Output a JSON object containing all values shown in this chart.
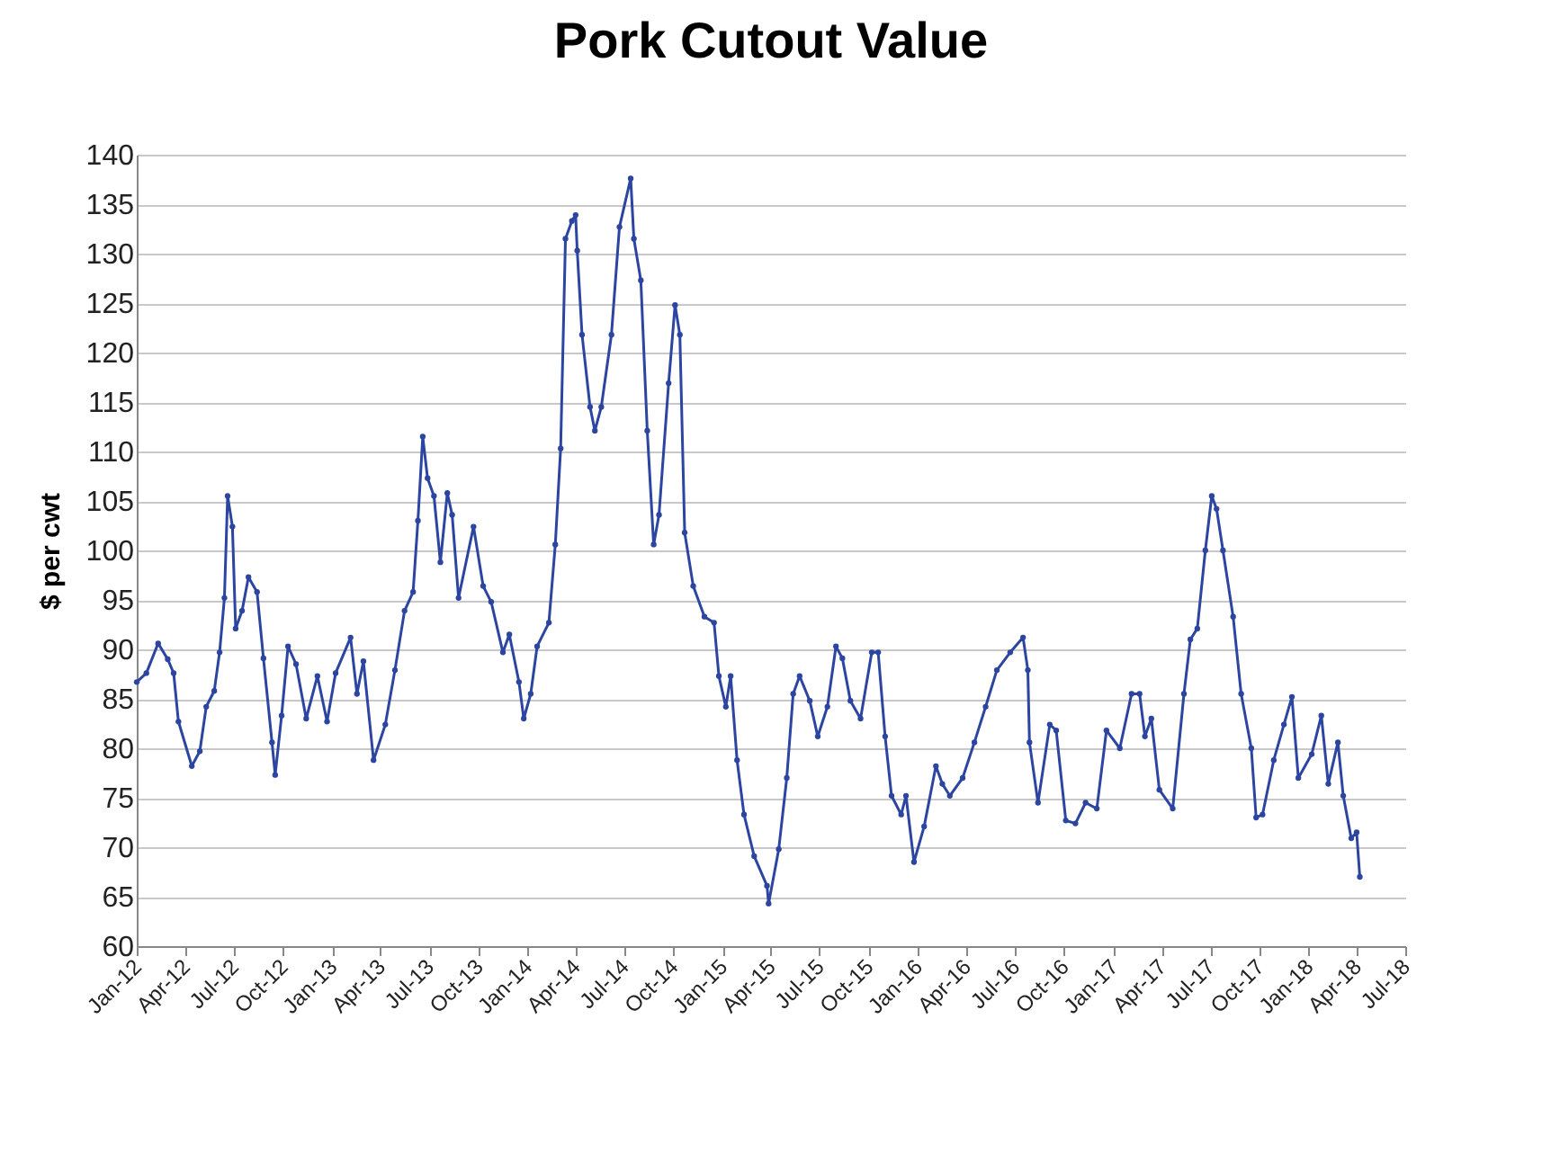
{
  "chart_data": {
    "type": "line",
    "title": "Pork Cutout Value",
    "ylabel": "$ per cwt",
    "x": [
      "2012-01-01",
      "2012-01-19",
      "2012-02-10",
      "2012-02-28",
      "2012-03-10",
      "2012-03-19",
      "2012-04-13",
      "2012-04-28",
      "2012-05-10",
      "2012-05-25",
      "2012-06-04",
      "2012-06-13",
      "2012-06-19",
      "2012-06-28",
      "2012-07-04",
      "2012-07-16",
      "2012-07-28",
      "2012-08-13",
      "2012-08-25",
      "2012-09-10",
      "2012-09-16",
      "2012-09-28",
      "2012-10-10",
      "2012-10-25",
      "2012-11-13",
      "2012-12-04",
      "2012-12-22",
      "2013-01-07",
      "2013-02-04",
      "2013-02-16",
      "2013-02-28",
      "2013-03-19",
      "2013-04-10",
      "2013-04-28",
      "2013-05-16",
      "2013-06-01",
      "2013-06-10",
      "2013-06-19",
      "2013-06-28",
      "2013-07-10",
      "2013-07-22",
      "2013-08-04",
      "2013-08-13",
      "2013-08-25",
      "2013-09-22",
      "2013-10-10",
      "2013-10-25",
      "2013-11-16",
      "2013-11-28",
      "2013-12-16",
      "2013-12-25",
      "2014-01-07",
      "2014-01-19",
      "2014-02-10",
      "2014-02-22",
      "2014-03-04",
      "2014-03-13",
      "2014-03-25",
      "2014-04-01",
      "2014-04-04",
      "2014-04-13",
      "2014-04-28",
      "2014-05-07",
      "2014-05-19",
      "2014-06-07",
      "2014-06-22",
      "2014-07-13",
      "2014-07-19",
      "2014-08-01",
      "2014-08-13",
      "2014-08-25",
      "2014-09-04",
      "2014-09-22",
      "2014-10-04",
      "2014-10-13",
      "2014-10-22",
      "2014-11-07",
      "2014-11-28",
      "2014-12-16",
      "2014-12-25",
      "2015-01-07",
      "2015-01-16",
      "2015-01-28",
      "2015-02-10",
      "2015-03-01",
      "2015-03-25",
      "2015-03-28",
      "2015-04-16",
      "2015-05-01",
      "2015-05-13",
      "2015-05-25",
      "2015-06-13",
      "2015-06-28",
      "2015-07-16",
      "2015-08-01",
      "2015-08-13",
      "2015-08-28",
      "2015-09-16",
      "2015-10-07",
      "2015-10-19",
      "2015-11-01",
      "2015-11-13",
      "2015-12-01",
      "2015-12-10",
      "2015-12-25",
      "2016-01-13",
      "2016-02-04",
      "2016-02-16",
      "2016-03-01",
      "2016-03-25",
      "2016-04-16",
      "2016-05-07",
      "2016-05-28",
      "2016-06-22",
      "2016-07-16",
      "2016-07-25",
      "2016-07-28",
      "2016-08-13",
      "2016-09-04",
      "2016-09-16",
      "2016-10-04",
      "2016-10-22",
      "2016-11-10",
      "2016-12-01",
      "2016-12-19",
      "2017-01-13",
      "2017-02-04",
      "2017-02-19",
      "2017-03-01",
      "2017-03-13",
      "2017-03-28",
      "2017-04-22",
      "2017-05-13",
      "2017-05-25",
      "2017-06-07",
      "2017-06-22",
      "2017-07-04",
      "2017-07-13",
      "2017-07-25",
      "2017-08-13",
      "2017-08-28",
      "2017-09-16",
      "2017-09-25",
      "2017-10-07",
      "2017-10-28",
      "2017-11-16",
      "2017-12-01",
      "2017-12-13",
      "2018-01-07",
      "2018-01-25",
      "2018-02-07",
      "2018-02-25",
      "2018-03-07",
      "2018-03-22",
      "2018-04-01",
      "2018-04-07"
    ],
    "series": [
      {
        "color": "#2b45a0",
        "values": [
          86.7,
          87.6,
          90.6,
          89,
          87.6,
          82.7,
          78.2,
          79.7,
          84.2,
          85.8,
          89.7,
          95.2,
          105.5,
          102.4,
          92.1,
          93.9,
          97.3,
          95.8,
          89.1,
          80.6,
          77.3,
          83.3,
          90.3,
          88.5,
          83,
          87.3,
          82.7,
          87.6,
          91.2,
          85.5,
          88.8,
          78.8,
          82.4,
          87.9,
          93.9,
          95.8,
          103,
          111.5,
          107.3,
          105.5,
          98.8,
          105.8,
          103.6,
          95.2,
          102.4,
          96.4,
          94.8,
          89.7,
          91.5,
          86.7,
          83,
          85.5,
          90.3,
          92.7,
          100.6,
          110.3,
          131.5,
          133.3,
          133.9,
          130.3,
          121.8,
          114.5,
          112.1,
          114.5,
          121.8,
          132.7,
          137.6,
          131.5,
          127.3,
          112.1,
          100.6,
          103.6,
          116.9,
          124.8,
          121.8,
          101.8,
          96.4,
          93.3,
          92.7,
          87.3,
          84.2,
          87.3,
          78.8,
          73.3,
          69.1,
          66.1,
          64.3,
          69.8,
          77,
          85.5,
          87.3,
          84.8,
          81.2,
          84.2,
          90.3,
          89.1,
          84.8,
          83,
          89.7,
          89.7,
          81.2,
          75.2,
          73.3,
          75.2,
          68.5,
          72.1,
          78.2,
          76.4,
          75.2,
          77,
          80.6,
          84.2,
          87.9,
          89.7,
          91.2,
          87.9,
          80.6,
          74.5,
          82.4,
          81.8,
          72.7,
          72.4,
          74.5,
          73.9,
          81.8,
          80,
          85.5,
          85.5,
          81.2,
          83,
          75.8,
          73.9,
          85.5,
          91,
          92.1,
          100,
          105.5,
          104.2,
          100,
          93.3,
          85.5,
          80,
          73,
          73.3,
          78.8,
          82.4,
          85.2,
          77,
          79.4,
          83.3,
          76.4,
          80.6,
          75.2,
          70.9,
          71.5,
          67
        ]
      }
    ],
    "xlim": [
      "2012-01-01",
      "2018-07-01"
    ],
    "xticks": [
      {
        "value": "2012-01-01",
        "label": "Jan-12"
      },
      {
        "value": "2012-04-01",
        "label": "Apr-12"
      },
      {
        "value": "2012-07-01",
        "label": "Jul-12"
      },
      {
        "value": "2012-10-01",
        "label": "Oct-12"
      },
      {
        "value": "2013-01-01",
        "label": "Jan-13"
      },
      {
        "value": "2013-04-01",
        "label": "Apr-13"
      },
      {
        "value": "2013-07-01",
        "label": "Jul-13"
      },
      {
        "value": "2013-10-01",
        "label": "Oct-13"
      },
      {
        "value": "2014-01-01",
        "label": "Jan-14"
      },
      {
        "value": "2014-04-01",
        "label": "Apr-14"
      },
      {
        "value": "2014-07-01",
        "label": "Jul-14"
      },
      {
        "value": "2014-10-01",
        "label": "Oct-14"
      },
      {
        "value": "2015-01-01",
        "label": "Jan-15"
      },
      {
        "value": "2015-04-01",
        "label": "Apr-15"
      },
      {
        "value": "2015-07-01",
        "label": "Jul-15"
      },
      {
        "value": "2015-10-01",
        "label": "Oct-15"
      },
      {
        "value": "2016-01-01",
        "label": "Jan-16"
      },
      {
        "value": "2016-04-01",
        "label": "Apr-16"
      },
      {
        "value": "2016-07-01",
        "label": "Jul-16"
      },
      {
        "value": "2016-10-01",
        "label": "Oct-16"
      },
      {
        "value": "2017-01-01",
        "label": "Jan-17"
      },
      {
        "value": "2017-04-01",
        "label": "Apr-17"
      },
      {
        "value": "2017-07-01",
        "label": "Jul-17"
      },
      {
        "value": "2017-10-01",
        "label": "Oct-17"
      },
      {
        "value": "2018-01-01",
        "label": "Jan-18"
      },
      {
        "value": "2018-04-01",
        "label": "Apr-18"
      },
      {
        "value": "2018-07-01",
        "label": "Jul-18"
      }
    ],
    "ylim": [
      60,
      140
    ],
    "yticks": [
      60,
      65,
      70,
      75,
      80,
      85,
      90,
      95,
      100,
      105,
      110,
      115,
      120,
      125,
      130,
      135,
      140
    ],
    "grid": "y",
    "marker": "circle"
  }
}
